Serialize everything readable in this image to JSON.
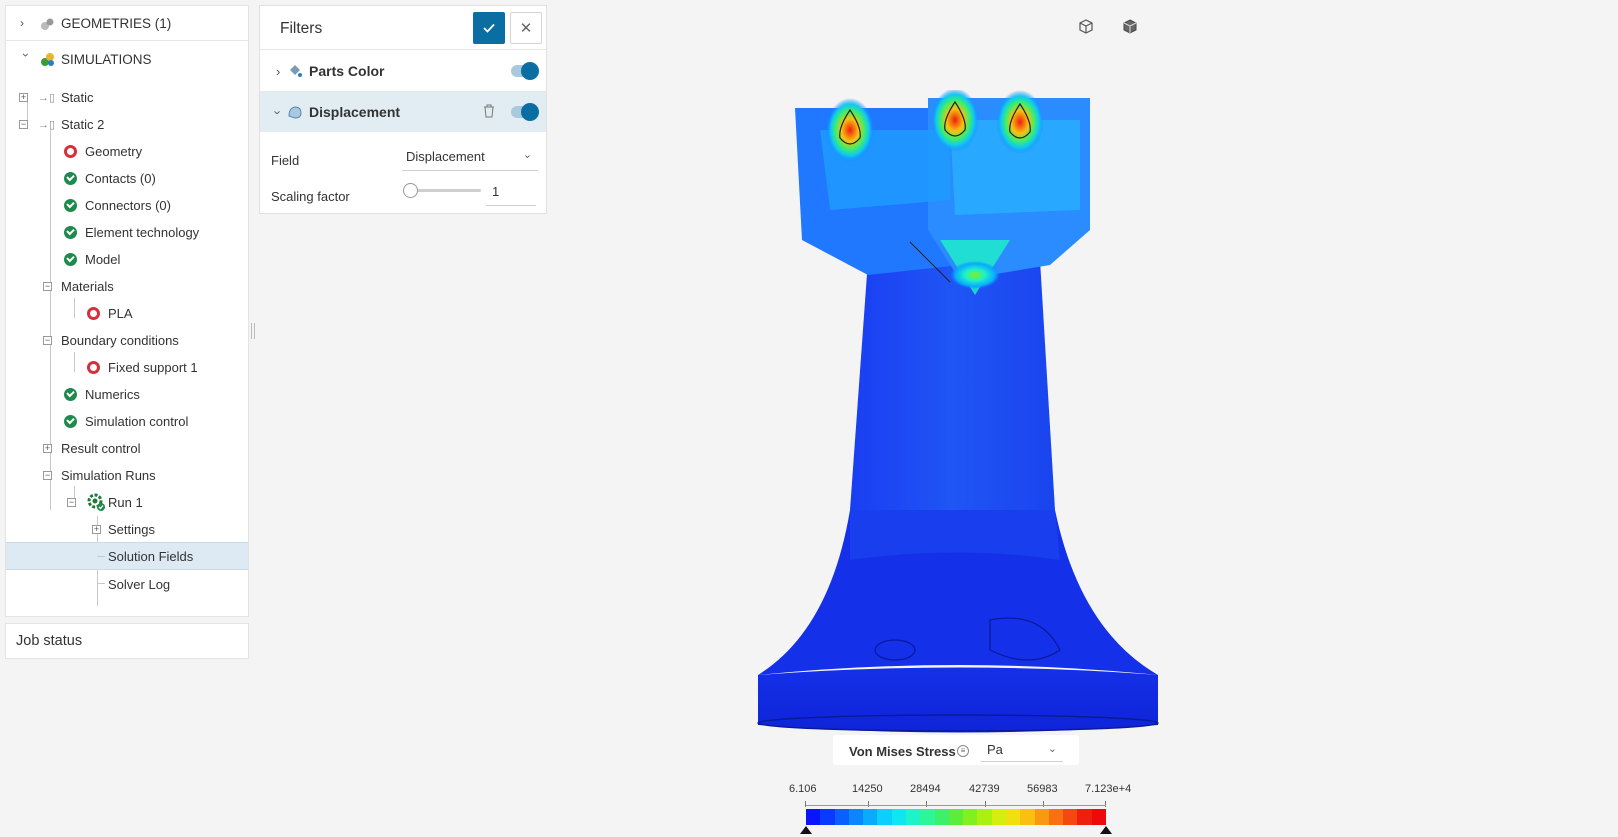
{
  "tree": {
    "geometries_label": "GEOMETRIES (1)",
    "simulations_label": "SIMULATIONS",
    "items": {
      "static": "Static",
      "static2": "Static 2",
      "geometry": "Geometry",
      "contacts": "Contacts (0)",
      "connectors": "Connectors (0)",
      "element_technology": "Element technology",
      "model": "Model",
      "materials": "Materials",
      "pla": "PLA",
      "boundary_conditions": "Boundary conditions",
      "fixed_support": "Fixed support 1",
      "numerics": "Numerics",
      "simulation_control": "Simulation control",
      "result_control": "Result control",
      "simulation_runs": "Simulation Runs",
      "run1": "Run 1",
      "settings": "Settings",
      "solution_fields": "Solution Fields",
      "solver_log": "Solver Log"
    }
  },
  "job_status": {
    "label": "Job status"
  },
  "filters": {
    "title": "Filters",
    "parts_color": {
      "label": "Parts Color",
      "enabled": true
    },
    "displacement": {
      "label": "Displacement",
      "enabled": true
    },
    "field_label": "Field",
    "field_value": "Displacement",
    "scaling_label": "Scaling factor",
    "scaling_value": "1"
  },
  "legend": {
    "title": "Von Mises Stress",
    "unit": "Pa",
    "ticks": [
      "6.106",
      "14250",
      "28494",
      "42739",
      "56983",
      "7.123e+4"
    ],
    "colors": [
      "#0a14ff",
      "#0a3aff",
      "#0a60ff",
      "#0a86ff",
      "#0aaaff",
      "#0acfff",
      "#10e6f0",
      "#1ef2c8",
      "#2cf59a",
      "#3cf06a",
      "#5aed3a",
      "#82ef1e",
      "#aaf010",
      "#d4ee10",
      "#f0e010",
      "#f8c010",
      "#fa9810",
      "#f87010",
      "#f44810",
      "#f01e10",
      "#ee0a0a"
    ]
  },
  "colors": {
    "accent": "#0b6ea3",
    "selected_row": "#deeaf3",
    "ok": "#1e8a4c",
    "error": "#d6303c"
  }
}
